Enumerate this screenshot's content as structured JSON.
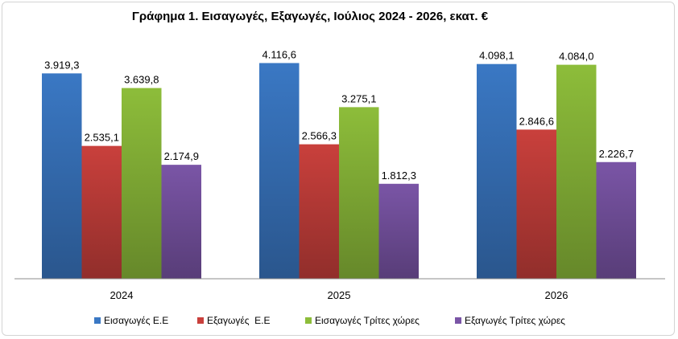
{
  "chart_data": {
    "type": "bar",
    "title": "Γράφημα 1. Εισαγωγές, Εξαγωγές, Ιούλιος 2024 - 2026, εκατ. €",
    "categories": [
      "2024",
      "2025",
      "2026"
    ],
    "ylim": [
      0,
      4400
    ],
    "grid": false,
    "legend": "bottom",
    "series": [
      {
        "name": "Εισαγωγές Ε.Ε",
        "values": [
          3919.3,
          4116.6,
          4098.1
        ],
        "labels": [
          "3.919,3",
          "4.116,6",
          "4.098,1"
        ],
        "color": "#3a78c4"
      },
      {
        "name": "Εξαγωγές  Ε.Ε",
        "values": [
          2535.1,
          2566.3,
          2846.6
        ],
        "labels": [
          "2.535,1",
          "2.566,3",
          "2.846,6"
        ],
        "color": "#c9403c"
      },
      {
        "name": "Εισαγωγές Τρίτες χώρες",
        "values": [
          3639.8,
          3275.1,
          4084.0
        ],
        "labels": [
          "3.639,8",
          "3.275,1",
          "4.084,0"
        ],
        "color": "#8dbd3a"
      },
      {
        "name": "Εξαγωγές Τρίτες χώρες",
        "values": [
          2174.9,
          1812.3,
          2226.7
        ],
        "labels": [
          "2.174,9",
          "1.812,3",
          "2.226,7"
        ],
        "color": "#7a55a6"
      }
    ]
  }
}
